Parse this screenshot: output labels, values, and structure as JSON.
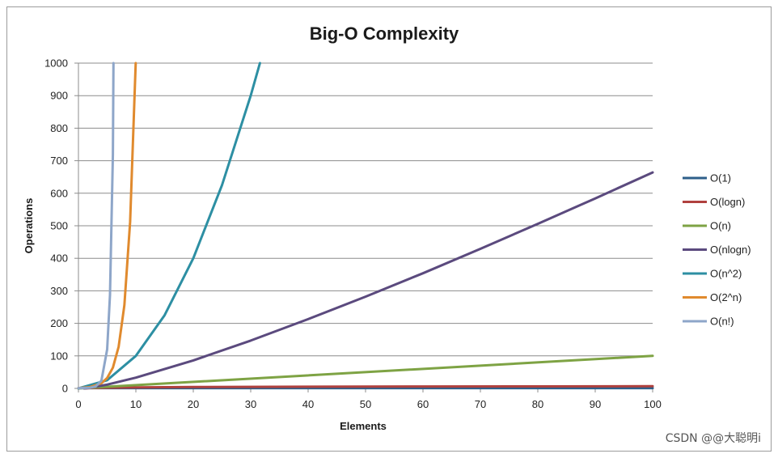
{
  "chart_data": {
    "type": "line",
    "title": "Big-O Complexity",
    "xlabel": "Elements",
    "ylabel": "Operations",
    "xlim": [
      0,
      100
    ],
    "ylim": [
      0,
      1000
    ],
    "xticks": [
      0,
      10,
      20,
      30,
      40,
      50,
      60,
      70,
      80,
      90,
      100
    ],
    "yticks": [
      0,
      100,
      200,
      300,
      400,
      500,
      600,
      700,
      800,
      900,
      1000
    ],
    "grid": "horizontal",
    "legend_position": "right",
    "series": [
      {
        "name": "O(1)",
        "color": "#2e5f8a",
        "points": [
          [
            0,
            1
          ],
          [
            100,
            1
          ]
        ]
      },
      {
        "name": "O(logn)",
        "color": "#b0413e",
        "points": [
          [
            1,
            0
          ],
          [
            2,
            1
          ],
          [
            5,
            2.3
          ],
          [
            10,
            3.3
          ],
          [
            20,
            4.3
          ],
          [
            40,
            5.3
          ],
          [
            60,
            5.9
          ],
          [
            80,
            6.3
          ],
          [
            100,
            6.6
          ]
        ]
      },
      {
        "name": "O(n)",
        "color": "#7ea344",
        "points": [
          [
            0,
            0
          ],
          [
            100,
            100
          ]
        ]
      },
      {
        "name": "O(nlogn)",
        "color": "#5b4a7e",
        "points": [
          [
            1,
            0
          ],
          [
            2,
            2
          ],
          [
            5,
            11.6
          ],
          [
            10,
            33
          ],
          [
            20,
            86
          ],
          [
            30,
            147
          ],
          [
            40,
            213
          ],
          [
            50,
            282
          ],
          [
            60,
            354
          ],
          [
            70,
            429
          ],
          [
            80,
            506
          ],
          [
            90,
            584
          ],
          [
            100,
            664
          ]
        ]
      },
      {
        "name": "O(n^2)",
        "color": "#2d8fa3",
        "points": [
          [
            0,
            0
          ],
          [
            5,
            25
          ],
          [
            10,
            100
          ],
          [
            15,
            225
          ],
          [
            20,
            400
          ],
          [
            25,
            625
          ],
          [
            30,
            900
          ],
          [
            31.6,
            1000
          ]
        ]
      },
      {
        "name": "O(2^n)",
        "color": "#e08a2e",
        "points": [
          [
            0,
            1
          ],
          [
            2,
            4
          ],
          [
            4,
            16
          ],
          [
            5,
            32
          ],
          [
            6,
            64
          ],
          [
            7,
            128
          ],
          [
            8,
            256
          ],
          [
            9,
            512
          ],
          [
            9.97,
            1000
          ]
        ]
      },
      {
        "name": "O(n!)",
        "color": "#8ea6c9",
        "points": [
          [
            0,
            1
          ],
          [
            2,
            2
          ],
          [
            3,
            6
          ],
          [
            4,
            24
          ],
          [
            5,
            120
          ],
          [
            5.5,
            287
          ],
          [
            6,
            720
          ],
          [
            6.1,
            1000
          ]
        ]
      }
    ]
  },
  "watermark": "CSDN @@大聪明i"
}
